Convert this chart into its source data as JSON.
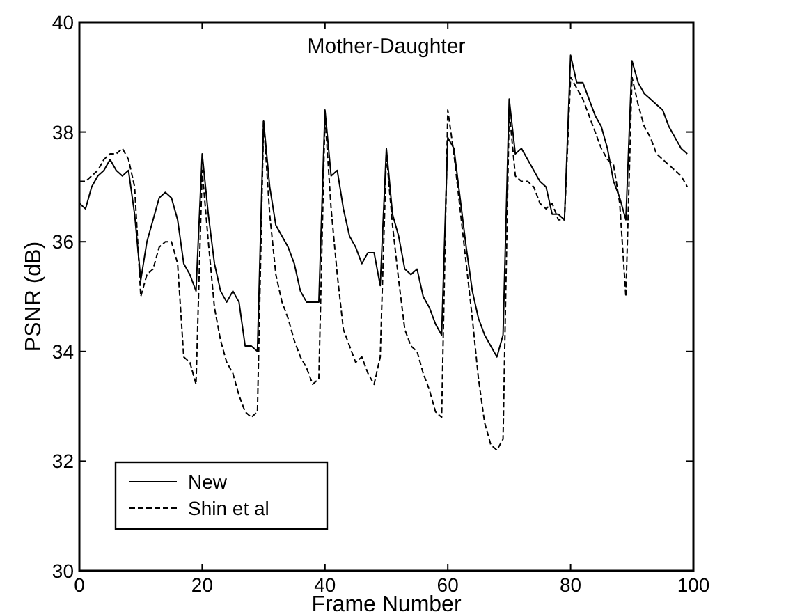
{
  "chart_data": {
    "type": "line",
    "title": "Mother-Daughter",
    "xlabel": "Frame Number",
    "ylabel": "PSNR (dB)",
    "x": [
      0,
      1,
      2,
      3,
      4,
      5,
      6,
      7,
      8,
      9,
      10,
      11,
      12,
      13,
      14,
      15,
      16,
      17,
      18,
      19,
      20,
      21,
      22,
      23,
      24,
      25,
      26,
      27,
      28,
      29,
      30,
      31,
      32,
      33,
      34,
      35,
      36,
      37,
      38,
      39,
      40,
      41,
      42,
      43,
      44,
      45,
      46,
      47,
      48,
      49,
      50,
      51,
      52,
      53,
      54,
      55,
      56,
      57,
      58,
      59,
      60,
      61,
      62,
      63,
      64,
      65,
      66,
      67,
      68,
      69,
      70,
      71,
      72,
      73,
      74,
      75,
      76,
      77,
      78,
      79,
      80,
      81,
      82,
      83,
      84,
      85,
      86,
      87,
      88,
      89,
      90,
      91,
      92,
      93,
      94,
      95,
      96,
      97,
      98,
      99
    ],
    "xlim": [
      0,
      100
    ],
    "xticks": [
      0,
      20,
      40,
      60,
      80,
      100
    ],
    "ylim": [
      30,
      40
    ],
    "yticks": [
      30,
      32,
      34,
      36,
      38,
      40
    ],
    "grid": false,
    "legend": "bottom left",
    "series": [
      {
        "name": "New",
        "color": "#000000",
        "line_style": "solid",
        "values": [
          36.7,
          36.6,
          37.0,
          37.2,
          37.3,
          37.5,
          37.3,
          37.2,
          37.3,
          36.5,
          35.3,
          36.0,
          36.4,
          36.8,
          36.9,
          36.8,
          36.4,
          35.6,
          35.4,
          35.1,
          37.6,
          36.5,
          35.6,
          35.1,
          34.9,
          35.1,
          34.9,
          34.1,
          34.1,
          34.0,
          38.2,
          37.0,
          36.3,
          36.1,
          35.9,
          35.6,
          35.1,
          34.9,
          34.9,
          34.9,
          38.4,
          37.2,
          37.3,
          36.6,
          36.1,
          35.9,
          35.6,
          35.8,
          35.8,
          35.2,
          37.7,
          36.5,
          36.1,
          35.5,
          35.4,
          35.5,
          35.0,
          34.8,
          34.5,
          34.3,
          37.9,
          37.7,
          36.8,
          35.9,
          35.1,
          34.6,
          34.3,
          34.1,
          33.9,
          34.3,
          38.6,
          37.6,
          37.7,
          37.5,
          37.3,
          37.1,
          37.0,
          36.5,
          36.5,
          36.4,
          39.4,
          38.9,
          38.9,
          38.6,
          38.3,
          38.1,
          37.7,
          37.1,
          36.8,
          36.4,
          39.3,
          38.9,
          38.7,
          38.6,
          38.5,
          38.4,
          38.1,
          37.9,
          37.7,
          37.6
        ]
      },
      {
        "name": "Shin et al",
        "color": "#000000",
        "line_style": "dashed",
        "values": [
          37.1,
          37.1,
          37.2,
          37.3,
          37.5,
          37.6,
          37.6,
          37.7,
          37.5,
          37.0,
          35.0,
          35.4,
          35.5,
          35.9,
          36.0,
          36.0,
          35.6,
          33.9,
          33.8,
          33.4,
          37.3,
          36.0,
          34.8,
          34.2,
          33.8,
          33.6,
          33.2,
          32.9,
          32.8,
          32.9,
          38.2,
          36.5,
          35.4,
          34.9,
          34.6,
          34.2,
          33.9,
          33.7,
          33.4,
          33.5,
          38.3,
          36.6,
          35.4,
          34.4,
          34.1,
          33.8,
          33.9,
          33.6,
          33.4,
          33.9,
          37.6,
          36.3,
          35.3,
          34.4,
          34.1,
          34.0,
          33.6,
          33.3,
          32.9,
          32.8,
          38.4,
          37.6,
          36.6,
          35.6,
          34.6,
          33.5,
          32.7,
          32.3,
          32.2,
          32.4,
          38.4,
          37.2,
          37.1,
          37.1,
          37.0,
          36.7,
          36.6,
          36.7,
          36.4,
          36.4,
          39.0,
          38.8,
          38.6,
          38.3,
          38.0,
          37.7,
          37.5,
          37.4,
          36.7,
          35.0,
          39.0,
          38.5,
          38.1,
          37.9,
          37.6,
          37.5,
          37.4,
          37.3,
          37.2,
          37.0
        ]
      }
    ]
  }
}
